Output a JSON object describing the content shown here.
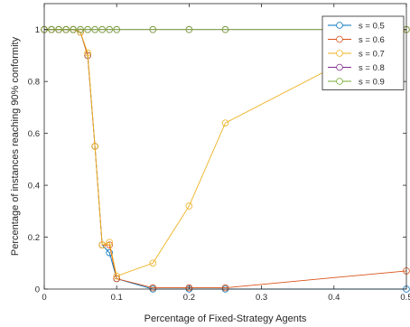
{
  "chart_data": {
    "type": "line",
    "title": "",
    "xlabel": "Percentage of Fixed-Strategy Agents",
    "ylabel": "Percentage of instances reaching 90% conformity",
    "xlim": [
      0,
      0.5
    ],
    "ylim": [
      0,
      1.1
    ],
    "xticks": [
      "0",
      "0.1",
      "0.2",
      "0.3",
      "0.4",
      "0.5"
    ],
    "yticks": [
      "0",
      "0.2",
      "0.4",
      "0.6",
      "0.8",
      "1"
    ],
    "grid": false,
    "legend_position": "top-right",
    "marker": "open-circle",
    "series": [
      {
        "name": "s = 0.5",
        "color": "#0072BD",
        "x": [
          0,
          0.01,
          0.02,
          0.03,
          0.04,
          0.05,
          0.06,
          0.07,
          0.08,
          0.09,
          0.1,
          0.15,
          0.2,
          0.25,
          0.5
        ],
        "y": [
          1,
          1,
          1,
          1,
          1,
          0.99,
          0.9,
          0.55,
          0.17,
          0.14,
          0.04,
          0,
          0,
          0,
          0
        ]
      },
      {
        "name": "s = 0.6",
        "color": "#D95319",
        "x": [
          0,
          0.01,
          0.02,
          0.03,
          0.04,
          0.05,
          0.06,
          0.07,
          0.08,
          0.09,
          0.1,
          0.15,
          0.2,
          0.25,
          0.5
        ],
        "y": [
          1,
          1,
          1,
          1,
          1,
          0.99,
          0.9,
          0.55,
          0.17,
          0.17,
          0.04,
          0.005,
          0.005,
          0.005,
          0.07
        ]
      },
      {
        "name": "s = 0.7",
        "color": "#EDB120",
        "x": [
          0,
          0.01,
          0.02,
          0.03,
          0.04,
          0.05,
          0.06,
          0.07,
          0.08,
          0.09,
          0.1,
          0.15,
          0.2,
          0.25,
          0.5
        ],
        "y": [
          1,
          1,
          1,
          1,
          1,
          0.99,
          0.91,
          0.55,
          0.17,
          0.18,
          0.05,
          0.1,
          0.32,
          0.64,
          1
        ]
      },
      {
        "name": "s = 0.8",
        "color": "#7E2F8E",
        "x": [
          0,
          0.01,
          0.02,
          0.03,
          0.04,
          0.05,
          0.06,
          0.07,
          0.08,
          0.09,
          0.1,
          0.15,
          0.2,
          0.25,
          0.5
        ],
        "y": [
          1,
          1,
          1,
          1,
          1,
          1,
          1,
          1,
          1,
          1,
          1,
          1,
          1,
          1,
          1
        ]
      },
      {
        "name": "s = 0.9",
        "color": "#77AC30",
        "x": [
          0,
          0.01,
          0.02,
          0.03,
          0.04,
          0.05,
          0.06,
          0.07,
          0.08,
          0.09,
          0.1,
          0.15,
          0.2,
          0.25,
          0.5
        ],
        "y": [
          1,
          1,
          1,
          1,
          1,
          1,
          1,
          1,
          1,
          1,
          1,
          1,
          1,
          1,
          1
        ]
      }
    ]
  }
}
